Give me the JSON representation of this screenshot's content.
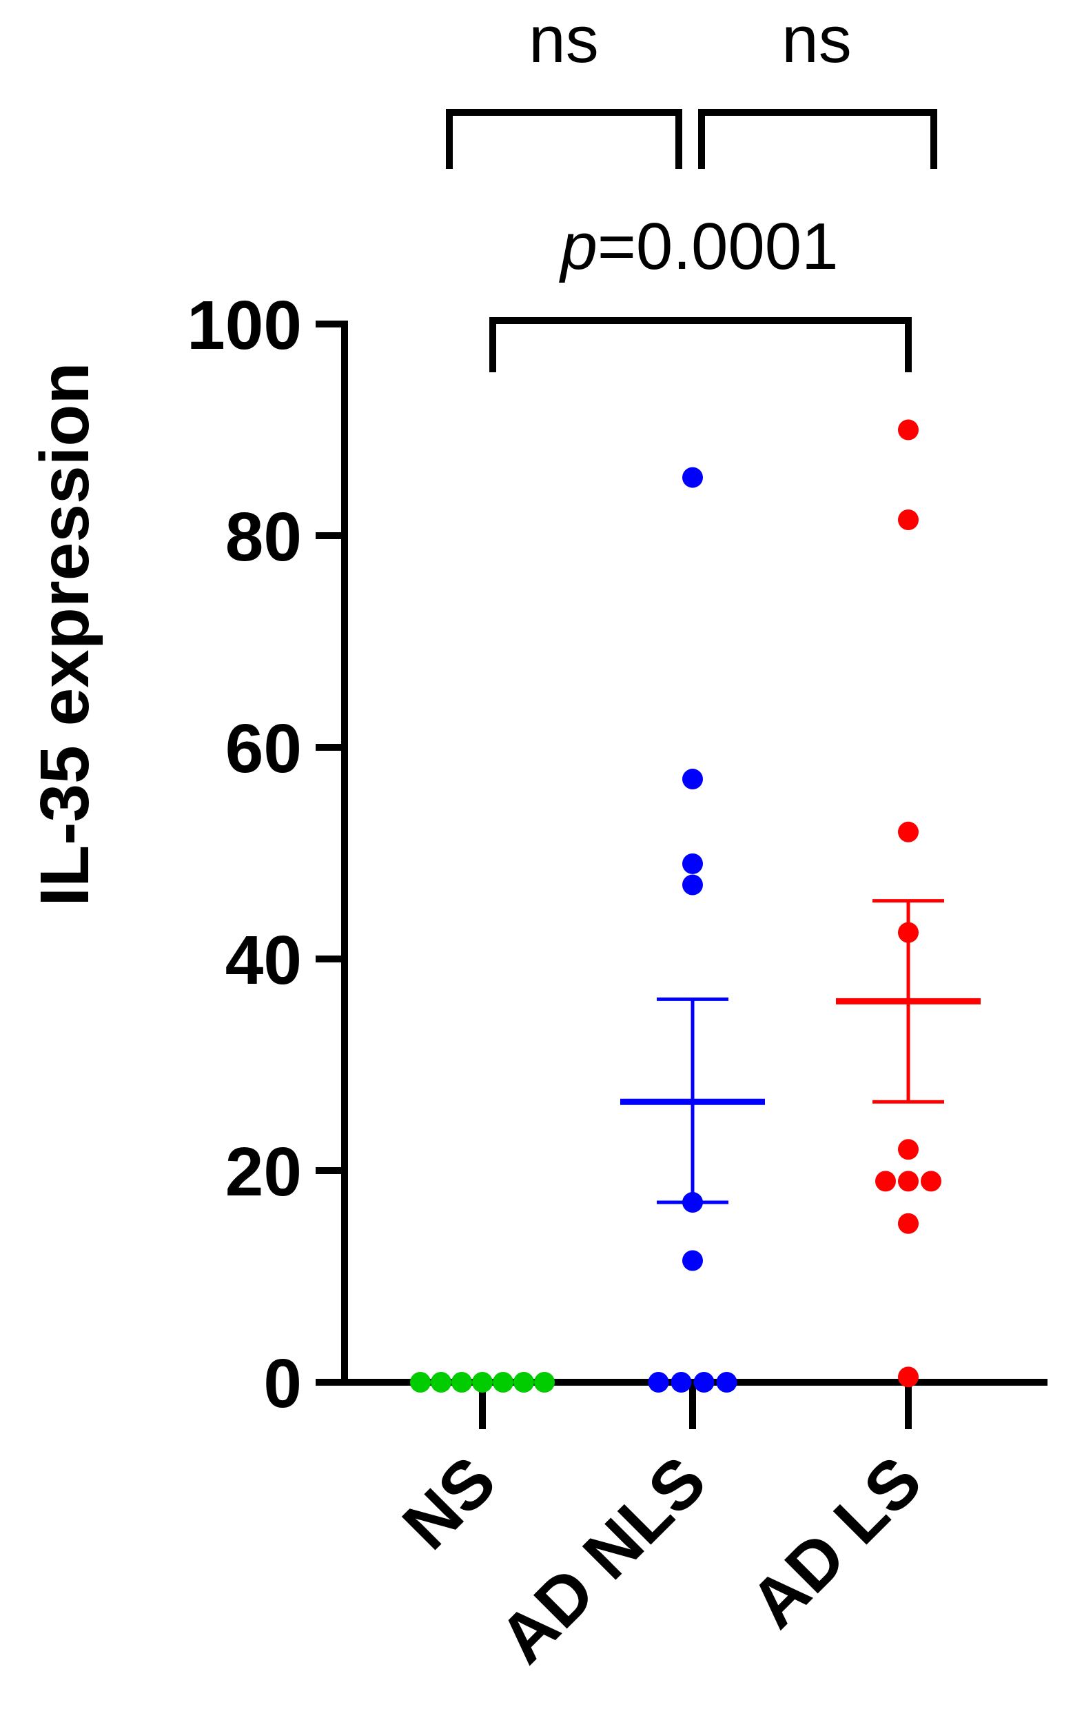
{
  "chart_data": {
    "type": "scatter",
    "ylabel": "IL-35 expression",
    "xlabel": "",
    "ylim": [
      0,
      100
    ],
    "yticks": [
      0,
      20,
      40,
      60,
      80,
      100
    ],
    "categories": [
      "NS",
      "AD NLS",
      "AD LS"
    ],
    "series": [
      {
        "category": "NS",
        "color": "#00cc00",
        "values": [
          0,
          0,
          0,
          0,
          0,
          0,
          0
        ],
        "mean": null,
        "sem_upper": null,
        "sem_lower": null
      },
      {
        "category": "AD NLS",
        "color": "#0000ff",
        "values": [
          85.5,
          57,
          49,
          47,
          17,
          11.5,
          0,
          0,
          0,
          0
        ],
        "mean": 26.5,
        "sem_upper": 36.2,
        "sem_lower": 17
      },
      {
        "category": "AD LS",
        "color": "#ff0000",
        "values": [
          90,
          81.5,
          52,
          42.5,
          22,
          19,
          19,
          19,
          15,
          0.5
        ],
        "mean": 36,
        "sem_upper": 45.5,
        "sem_lower": 26.5
      }
    ],
    "comparisons": [
      {
        "group1": "NS",
        "group2": "AD NLS",
        "label": "ns"
      },
      {
        "group1": "AD NLS",
        "group2": "AD LS",
        "label": "ns"
      },
      {
        "group1": "NS",
        "group2": "AD LS",
        "label_italic": "p",
        "label_rest": "=0.0001"
      }
    ]
  }
}
